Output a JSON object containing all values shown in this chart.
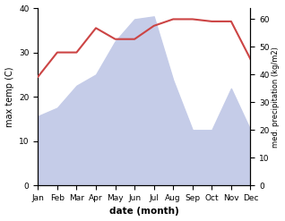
{
  "months": [
    "Jan",
    "Feb",
    "Mar",
    "Apr",
    "May",
    "Jun",
    "Jul",
    "Aug",
    "Sep",
    "Oct",
    "Nov",
    "Dec"
  ],
  "temperature": [
    24.5,
    30.0,
    30.0,
    35.5,
    33.0,
    33.0,
    36.0,
    37.5,
    37.5,
    37.0,
    37.0,
    28.5
  ],
  "precipitation": [
    25.0,
    28.0,
    36.0,
    40.0,
    52.0,
    60.0,
    61.0,
    38.0,
    20.0,
    20.0,
    35.0,
    20.0
  ],
  "temp_color": "#cc4444",
  "precip_fill_color": "#c5cce8",
  "ylabel_left": "max temp (C)",
  "ylabel_right": "med. precipitation (kg/m2)",
  "xlabel": "date (month)",
  "ylim_left": [
    0,
    40
  ],
  "ylim_right": [
    0,
    64
  ],
  "yticks_left": [
    0,
    10,
    20,
    30,
    40
  ],
  "yticks_right": [
    0,
    10,
    20,
    30,
    40,
    50,
    60
  ],
  "background_color": "#ffffff"
}
